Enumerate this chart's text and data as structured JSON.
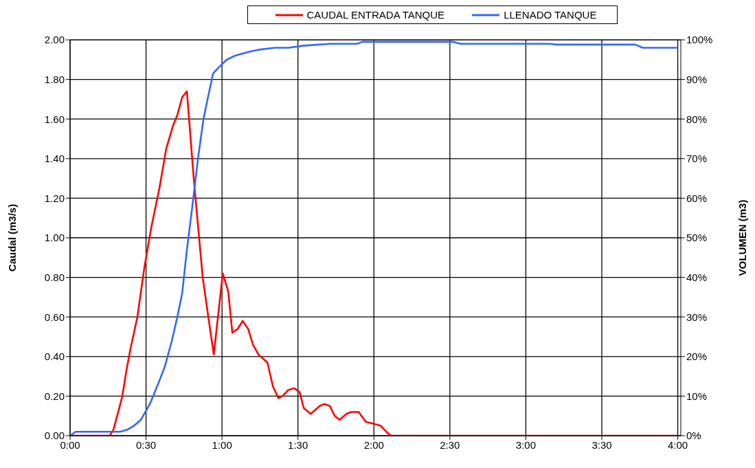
{
  "chart_data": {
    "type": "line",
    "ylabel": "Caudal (m3/s)",
    "y2label": "VOLUMEN (m3)",
    "legend": "top",
    "grid": true,
    "marker": "none",
    "line_style": "solid",
    "xlim": [
      0,
      4.02
    ],
    "xticks": [
      {
        "value": 0,
        "label": "0:00"
      },
      {
        "value": 0.5,
        "label": "0:30"
      },
      {
        "value": 1,
        "label": "1:00"
      },
      {
        "value": 1.5,
        "label": "1:30"
      },
      {
        "value": 2,
        "label": "2:00"
      },
      {
        "value": 2.5,
        "label": "2:30"
      },
      {
        "value": 3,
        "label": "3:00"
      },
      {
        "value": 3.5,
        "label": "3:30"
      },
      {
        "value": 4,
        "label": "4:00"
      }
    ],
    "ylim": [
      0,
      2
    ],
    "yticks": [
      {
        "value": 0,
        "label": "0.00"
      },
      {
        "value": 0.2,
        "label": "0.20"
      },
      {
        "value": 0.4,
        "label": "0.40"
      },
      {
        "value": 0.6,
        "label": "0.60"
      },
      {
        "value": 0.8,
        "label": "0.80"
      },
      {
        "value": 1,
        "label": "1.00"
      },
      {
        "value": 1.2,
        "label": "1.20"
      },
      {
        "value": 1.4,
        "label": "1.40"
      },
      {
        "value": 1.6,
        "label": "1.60"
      },
      {
        "value": 1.8,
        "label": "1.80"
      },
      {
        "value": 2,
        "label": "2.00"
      }
    ],
    "y2lim": [
      0,
      100
    ],
    "y2ticks": [
      {
        "value": 0,
        "label": "0%"
      },
      {
        "value": 10,
        "label": "10%"
      },
      {
        "value": 20,
        "label": "20%"
      },
      {
        "value": 30,
        "label": "30%"
      },
      {
        "value": 40,
        "label": "40%"
      },
      {
        "value": 50,
        "label": "50%"
      },
      {
        "value": 60,
        "label": "60%"
      },
      {
        "value": 70,
        "label": "70%"
      },
      {
        "value": 80,
        "label": "80%"
      },
      {
        "value": 90,
        "label": "90%"
      },
      {
        "value": 100,
        "label": "100%"
      }
    ],
    "series": [
      {
        "name": "CAUDAL ENTRADA TANQUE",
        "color": "#ff0000",
        "x": [
          0,
          0.262,
          0.285,
          0.317,
          0.344,
          0.371,
          0.398,
          0.443,
          0.489,
          0.534,
          0.588,
          0.633,
          0.679,
          0.706,
          0.738,
          0.769,
          0.814,
          0.873,
          0.91,
          0.946,
          1.005,
          1.041,
          1.068,
          1.104,
          1.136,
          1.172,
          1.204,
          1.24,
          1.299,
          1.335,
          1.371,
          1.398,
          1.434,
          1.475,
          1.511,
          1.538,
          1.584,
          1.643,
          1.674,
          1.71,
          1.742,
          1.774,
          1.819,
          1.851,
          1.9,
          1.946,
          2.0,
          2.045,
          2.081,
          2.113,
          4.0
        ],
        "values": [
          0,
          0,
          0.03,
          0.12,
          0.2,
          0.33,
          0.44,
          0.6,
          0.85,
          1.05,
          1.25,
          1.45,
          1.57,
          1.62,
          1.71,
          1.74,
          1.3,
          0.8,
          0.6,
          0.41,
          0.82,
          0.73,
          0.52,
          0.54,
          0.58,
          0.54,
          0.46,
          0.41,
          0.37,
          0.25,
          0.19,
          0.2,
          0.23,
          0.24,
          0.22,
          0.14,
          0.11,
          0.15,
          0.16,
          0.15,
          0.1,
          0.08,
          0.11,
          0.12,
          0.12,
          0.07,
          0.06,
          0.05,
          0.02,
          0,
          0
        ]
      },
      {
        "name": "LLENADO TANQUE",
        "color": "#3366ff",
        "axis": "y2",
        "x": [
          0,
          0.036,
          0.33,
          0.376,
          0.42,
          0.466,
          0.525,
          0.579,
          0.624,
          0.67,
          0.706,
          0.738,
          0.769,
          0.805,
          0.842,
          0.878,
          0.905,
          0.941,
          0.977,
          1.032,
          1.086,
          1.131,
          1.18,
          1.24,
          1.348,
          1.44,
          1.53,
          1.71,
          1.89,
          1.923,
          2.525,
          2.57,
          3.158,
          3.2,
          3.72,
          3.77,
          4.0
        ],
        "values": [
          0,
          1,
          1,
          1.5,
          2.5,
          4,
          8,
          13,
          17.5,
          24,
          30,
          36,
          47,
          58,
          70,
          80,
          85,
          91.5,
          93,
          95,
          96,
          96.5,
          97,
          97.5,
          98,
          98,
          98.5,
          99,
          99,
          99.5,
          99.5,
          99,
          99,
          98.8,
          98.8,
          98,
          98
        ]
      }
    ]
  }
}
